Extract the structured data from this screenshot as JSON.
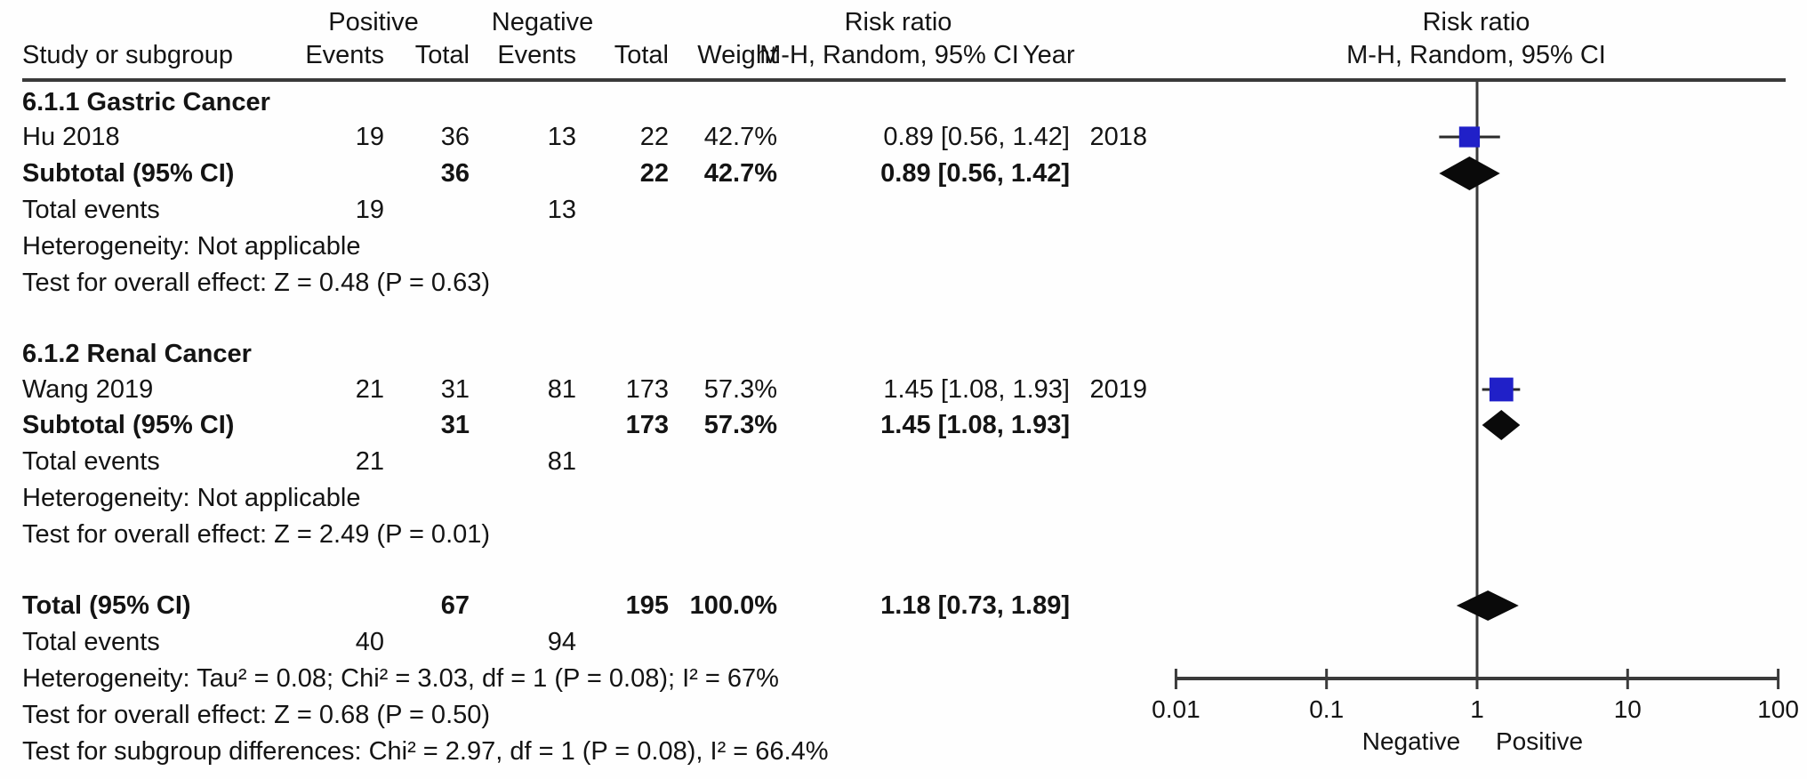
{
  "header": {
    "study_col": "Study or subgroup",
    "group1": "Positive",
    "group2": "Negative",
    "events": "Events",
    "total": "Total",
    "weight": "Weight",
    "effect_title": "Risk ratio",
    "effect_method": "M-H, Random, 95% CI",
    "year": "Year",
    "plot_title": "Risk ratio",
    "plot_method": "M-H, Random, 95% CI"
  },
  "sections": [
    {
      "title": "6.1.1 Gastric Cancer",
      "study": {
        "name": "Hu 2018",
        "events1": "19",
        "total1": "36",
        "events2": "13",
        "total2": "22",
        "weight": "42.7%",
        "estimate": "0.89 [0.56, 1.42]",
        "year": "2018"
      },
      "subtotal": {
        "label": "Subtotal (95% CI)",
        "total1": "36",
        "total2": "22",
        "weight": "42.7%",
        "estimate": "0.89 [0.56, 1.42]"
      },
      "total_events": {
        "label": "Total events",
        "events1": "19",
        "events2": "13"
      },
      "heterogeneity": "Heterogeneity: Not applicable",
      "overall_effect": "Test for overall effect: Z = 0.48 (P = 0.63)"
    },
    {
      "title": "6.1.2 Renal Cancer",
      "study": {
        "name": "Wang 2019",
        "events1": "21",
        "total1": "31",
        "events2": "81",
        "total2": "173",
        "weight": "57.3%",
        "estimate": "1.45 [1.08, 1.93]",
        "year": "2019"
      },
      "subtotal": {
        "label": "Subtotal (95% CI)",
        "total1": "31",
        "total2": "173",
        "weight": "57.3%",
        "estimate": "1.45 [1.08, 1.93]"
      },
      "total_events": {
        "label": "Total events",
        "events1": "21",
        "events2": "81"
      },
      "heterogeneity": "Heterogeneity: Not applicable",
      "overall_effect": "Test for overall effect: Z = 2.49 (P = 0.01)"
    }
  ],
  "total": {
    "label": "Total (95% CI)",
    "total1": "67",
    "total2": "195",
    "weight": "100.0%",
    "estimate": "1.18 [0.73, 1.89]",
    "total_events": {
      "label": "Total events",
      "events1": "40",
      "events2": "94"
    },
    "heterogeneity": "Heterogeneity: Tau² = 0.08; Chi² = 3.03, df = 1 (P = 0.08); I² = 67%",
    "overall_effect": "Test for overall effect: Z = 0.68 (P = 0.50)",
    "subgroup_differences": "Test for subgroup differences: Chi² = 2.97, df = 1 (P = 0.08), I² = 66.4%"
  },
  "chart_data": {
    "type": "scatter",
    "subtype": "forest-plot",
    "title": "Risk ratio",
    "method": "M-H, Random, 95% CI",
    "x_scale": "log10",
    "xlim": [
      0.01,
      100
    ],
    "x_tick_values": [
      0.01,
      0.1,
      1,
      10,
      100
    ],
    "x_ticks": [
      "0.01",
      "0.1",
      "1",
      "10",
      "100"
    ],
    "no_effect_line": 1,
    "axis_left_label": "Negative",
    "axis_right_label": "Positive",
    "marker_color": "#2020c8",
    "diamond_color": "#0a0a0a",
    "line_color": "#3a3a3a",
    "points": [
      {
        "row": "Hu 2018",
        "type": "square",
        "value": 0.89,
        "ci": [
          0.56,
          1.42
        ],
        "weight_pct": 42.7
      },
      {
        "row": "Subtotal Gastric Cancer (95% CI)",
        "type": "diamond",
        "value": 0.89,
        "ci": [
          0.56,
          1.42
        ]
      },
      {
        "row": "Wang 2019",
        "type": "square",
        "value": 1.45,
        "ci": [
          1.08,
          1.93
        ],
        "weight_pct": 57.3
      },
      {
        "row": "Subtotal Renal Cancer (95% CI)",
        "type": "diamond",
        "value": 1.45,
        "ci": [
          1.08,
          1.93
        ]
      },
      {
        "row": "Total (95% CI)",
        "type": "diamond",
        "value": 1.18,
        "ci": [
          0.73,
          1.89
        ]
      }
    ]
  }
}
